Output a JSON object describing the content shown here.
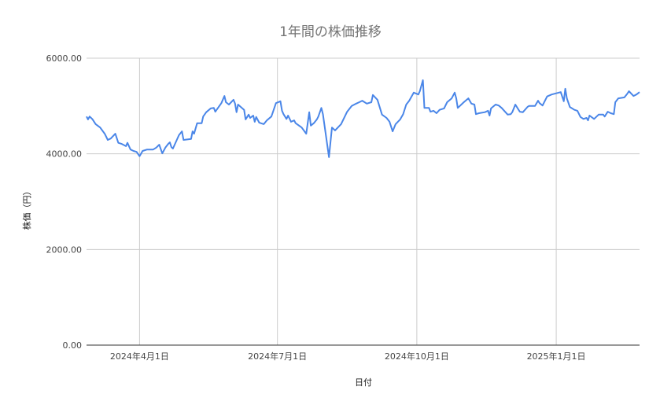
{
  "chart_data": {
    "type": "line",
    "title": "1年間の株価推移",
    "xlabel": "日付",
    "ylabel": "株価（円）",
    "ylim": [
      0,
      6000
    ],
    "xlim": [
      "2024-02-26",
      "2025-02-25"
    ],
    "yticks": [
      0,
      2000,
      4000,
      6000
    ],
    "ytick_labels": [
      "0.00",
      "2000.00",
      "4000.00",
      "6000.00"
    ],
    "xticks": [
      "2024-04-01",
      "2024-07-01",
      "2024-10-01",
      "2025-01-01"
    ],
    "xtick_labels": [
      "2024年4月1日",
      "2024年7月1日",
      "2024年10月1日",
      "2025年1月1日"
    ],
    "grid": true,
    "legend": "none",
    "colors": {
      "line": "#4a86e8",
      "grid": "#cccccc",
      "axis": "#333333"
    },
    "series": [
      {
        "x": [
          "2024-02-26",
          "2024-02-27",
          "2024-02-28",
          "2024-03-01",
          "2024-03-03",
          "2024-03-06",
          "2024-03-09",
          "2024-03-11",
          "2024-03-13",
          "2024-03-16",
          "2024-03-18",
          "2024-03-20",
          "2024-03-23",
          "2024-03-24",
          "2024-03-26",
          "2024-03-28",
          "2024-03-30",
          "2024-04-01",
          "2024-04-03",
          "2024-04-06",
          "2024-04-10",
          "2024-04-12",
          "2024-04-14",
          "2024-04-16",
          "2024-04-18",
          "2024-04-20",
          "2024-04-21",
          "2024-04-22",
          "2024-04-23",
          "2024-04-27",
          "2024-04-29",
          "2024-04-30",
          "2024-05-05",
          "2024-05-06",
          "2024-05-07",
          "2024-05-09",
          "2024-05-12",
          "2024-05-13",
          "2024-05-15",
          "2024-05-18",
          "2024-05-20",
          "2024-05-21",
          "2024-05-25",
          "2024-05-27",
          "2024-05-28",
          "2024-05-30",
          "2024-06-02",
          "2024-06-03",
          "2024-06-04",
          "2024-06-05",
          "2024-06-09",
          "2024-06-10",
          "2024-06-12",
          "2024-06-13",
          "2024-06-15",
          "2024-06-16",
          "2024-06-17",
          "2024-06-19",
          "2024-06-22",
          "2024-06-24",
          "2024-06-27",
          "2024-06-28",
          "2024-06-30",
          "2024-07-03",
          "2024-07-04",
          "2024-07-05",
          "2024-07-07",
          "2024-07-08",
          "2024-07-10",
          "2024-07-12",
          "2024-07-13",
          "2024-07-17",
          "2024-07-20",
          "2024-07-22",
          "2024-07-23",
          "2024-07-25",
          "2024-07-27",
          "2024-07-28",
          "2024-07-30",
          "2024-07-31",
          "2024-08-04",
          "2024-08-06",
          "2024-08-08",
          "2024-08-12",
          "2024-08-16",
          "2024-08-19",
          "2024-08-22",
          "2024-08-24",
          "2024-08-26",
          "2024-08-29",
          "2024-09-01",
          "2024-09-02",
          "2024-09-05",
          "2024-09-08",
          "2024-09-11",
          "2024-09-13",
          "2024-09-15",
          "2024-09-17",
          "2024-09-20",
          "2024-09-22",
          "2024-09-24",
          "2024-09-26",
          "2024-09-29",
          "2024-10-02",
          "2024-10-03",
          "2024-10-05",
          "2024-10-06",
          "2024-10-09",
          "2024-10-10",
          "2024-10-12",
          "2024-10-14",
          "2024-10-16",
          "2024-10-19",
          "2024-10-21",
          "2024-10-24",
          "2024-10-26",
          "2024-10-27",
          "2024-10-28",
          "2024-11-01",
          "2024-11-04",
          "2024-11-06",
          "2024-11-08",
          "2024-11-09",
          "2024-11-11",
          "2024-11-15",
          "2024-11-17",
          "2024-11-18",
          "2024-11-19",
          "2024-11-22",
          "2024-11-24",
          "2024-11-26",
          "2024-11-30",
          "2024-12-02",
          "2024-12-03",
          "2024-12-05",
          "2024-12-07",
          "2024-12-08",
          "2024-12-10",
          "2024-12-13",
          "2024-12-14",
          "2024-12-18",
          "2024-12-20",
          "2024-12-21",
          "2024-12-23",
          "2024-12-26",
          "2024-12-29",
          "2025-01-04",
          "2025-01-06",
          "2025-01-07",
          "2025-01-08",
          "2025-01-10",
          "2025-01-13",
          "2025-01-15",
          "2025-01-17",
          "2025-01-19",
          "2025-01-21",
          "2025-01-22",
          "2025-01-23",
          "2025-01-26",
          "2025-01-29",
          "2025-02-01",
          "2025-02-02",
          "2025-02-04",
          "2025-02-06",
          "2025-02-08",
          "2025-02-09",
          "2025-02-11",
          "2025-02-15",
          "2025-02-17",
          "2025-02-18",
          "2025-02-21",
          "2025-02-23",
          "2025-02-25"
        ],
        "y": [
          4780,
          4720,
          4780,
          4720,
          4620,
          4550,
          4420,
          4290,
          4320,
          4420,
          4230,
          4210,
          4160,
          4230,
          4090,
          4060,
          4040,
          3950,
          4060,
          4090,
          4090,
          4130,
          4190,
          4010,
          4130,
          4210,
          4240,
          4140,
          4110,
          4390,
          4470,
          4290,
          4310,
          4470,
          4420,
          4640,
          4640,
          4780,
          4870,
          4950,
          4960,
          4880,
          5060,
          5210,
          5080,
          5030,
          5130,
          5050,
          4870,
          5030,
          4920,
          4720,
          4820,
          4750,
          4800,
          4670,
          4770,
          4650,
          4620,
          4700,
          4780,
          4870,
          5060,
          5100,
          4900,
          4830,
          4730,
          4800,
          4670,
          4700,
          4640,
          4550,
          4420,
          4870,
          4590,
          4640,
          4720,
          4780,
          4960,
          4830,
          3930,
          4550,
          4490,
          4620,
          4880,
          5000,
          5050,
          5080,
          5110,
          5050,
          5080,
          5230,
          5130,
          4820,
          4750,
          4670,
          4470,
          4620,
          4720,
          4830,
          5030,
          5110,
          5280,
          5240,
          5310,
          5540,
          4960,
          4960,
          4880,
          4900,
          4850,
          4920,
          4950,
          5080,
          5160,
          5280,
          5160,
          4960,
          5080,
          5160,
          5050,
          5030,
          4830,
          4850,
          4870,
          4900,
          4800,
          4950,
          5030,
          5010,
          4960,
          4820,
          4830,
          4870,
          5030,
          4930,
          4880,
          4870,
          4980,
          5000,
          5000,
          5110,
          5060,
          5010,
          5200,
          5240,
          5290,
          5100,
          5360,
          5160,
          4980,
          4920,
          4900,
          4770,
          4730,
          4750,
          4700,
          4800,
          4730,
          4820,
          4820,
          4780,
          4880,
          4850,
          4830,
          5080,
          5160,
          5180,
          5260,
          5310,
          5210,
          5240,
          5290
        ]
      }
    ]
  }
}
